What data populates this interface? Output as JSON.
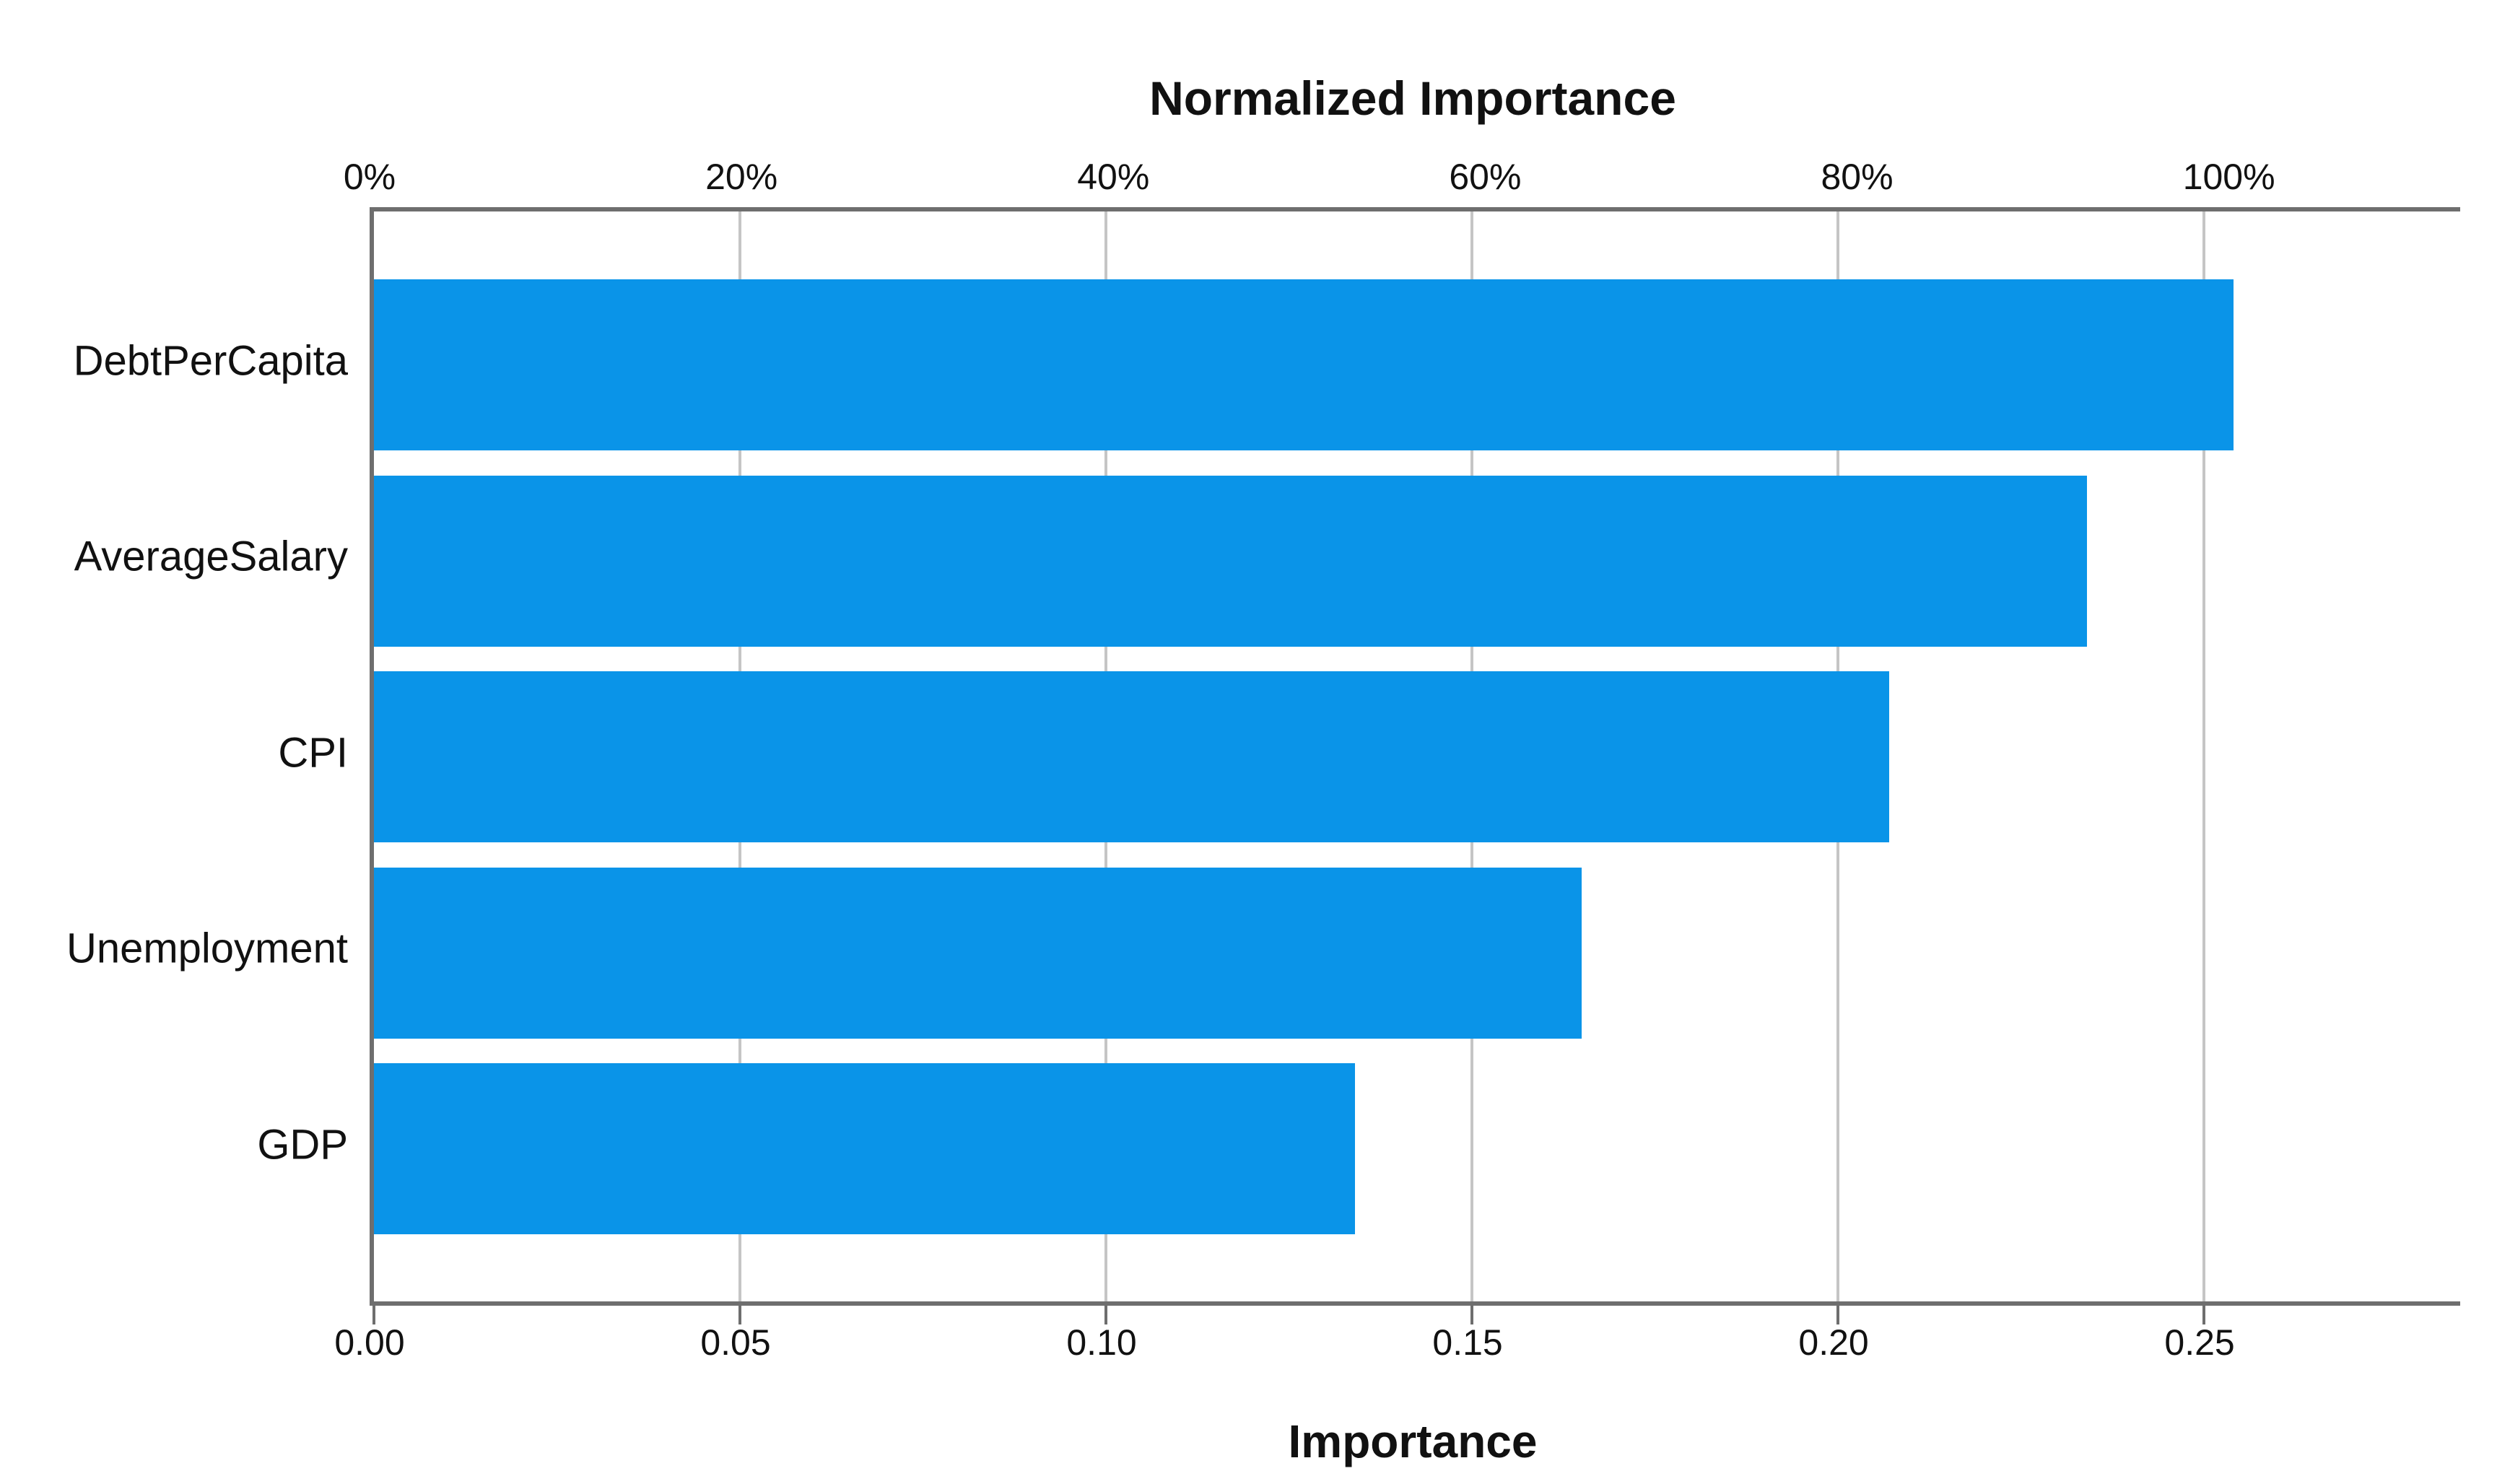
{
  "chart_data": {
    "type": "bar",
    "orientation": "horizontal",
    "title": "Normalized Importance",
    "bottom_axis_label": "Importance",
    "categories": [
      "DebtPerCapita",
      "AverageSalary",
      "CPI",
      "Unemployment",
      "GDP"
    ],
    "values": [
      0.254,
      0.234,
      0.207,
      0.165,
      0.134
    ],
    "normalized_pct": [
      100,
      92,
      81,
      65,
      53
    ],
    "top_ticks": [
      {
        "label": "0%",
        "pct": 0
      },
      {
        "label": "20%",
        "pct": 20
      },
      {
        "label": "40%",
        "pct": 40
      },
      {
        "label": "60%",
        "pct": 60
      },
      {
        "label": "80%",
        "pct": 80
      },
      {
        "label": "100%",
        "pct": 100
      }
    ],
    "bottom_ticks": [
      {
        "label": "0.00",
        "value": 0.0
      },
      {
        "label": "0.05",
        "value": 0.05
      },
      {
        "label": "0.10",
        "value": 0.1
      },
      {
        "label": "0.15",
        "value": 0.15
      },
      {
        "label": "0.20",
        "value": 0.2
      },
      {
        "label": "0.25",
        "value": 0.25
      }
    ],
    "xlim": [
      0,
      0.285
    ],
    "grid": "vertical gridlines at bottom-axis tick values, drawn behind bars",
    "legend": "none",
    "bar_color": "#0a94e8",
    "axis_color": "#6e6e6e",
    "gridline_color": "#c5c5c5",
    "text_color": "#111111",
    "background_color": "#ffffff"
  }
}
